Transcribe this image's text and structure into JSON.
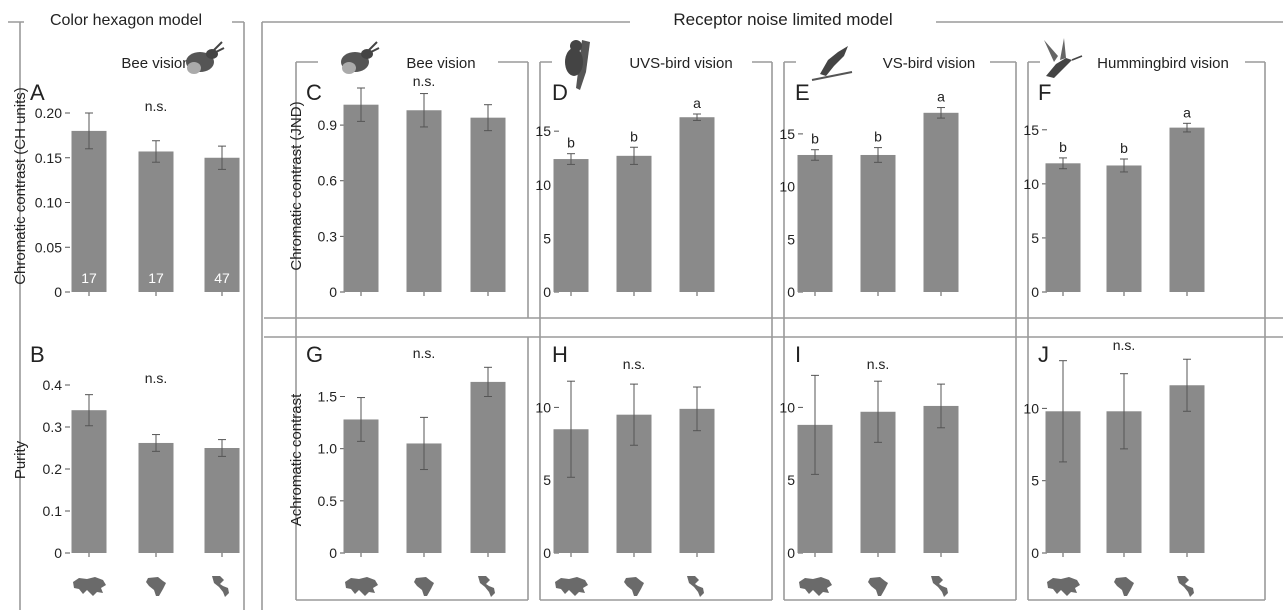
{
  "sections": {
    "left": "Color hexagon model",
    "right": "Receptor noise limited model"
  },
  "axis_titles": {
    "chromatic_ch": "Chromatic contrast (CH units)",
    "purity": "Purity",
    "chromatic_jnd": "Chromatic contrast (JND)",
    "achromatic": "Achromatic contrast"
  },
  "region_icons": [
    "eurasia-map-icon",
    "africa-map-icon",
    "americas-map-icon"
  ],
  "animal_icons": {
    "A": "bee-icon",
    "C": "bee-icon",
    "D": "uvs-bird-icon",
    "E": "vs-bird-icon",
    "F": "hummingbird-icon"
  },
  "colors": {
    "bar": "#8a8a8a",
    "frame": "#9a9a9a",
    "text": "#222222"
  },
  "chart_data": [
    {
      "panel": "A",
      "type": "bar",
      "title": "Bee vision",
      "ylabel": "Chromatic contrast (CH units)",
      "categories": [
        "Eurasia",
        "Africa",
        "Americas"
      ],
      "values": [
        0.18,
        0.157,
        0.15
      ],
      "errors": [
        0.02,
        0.012,
        0.013
      ],
      "ylim": [
        0,
        0.2
      ],
      "yticks": [
        "0",
        "0.05",
        "0.10",
        "0.15",
        "0.20"
      ],
      "tickvals": [
        0,
        0.05,
        0.1,
        0.15,
        0.2
      ],
      "annotation": "n.s.",
      "letters": [
        "",
        "",
        ""
      ],
      "sample_sizes": [
        "17",
        "17",
        "47"
      ]
    },
    {
      "panel": "B",
      "type": "bar",
      "title": "",
      "ylabel": "Purity",
      "categories": [
        "Eurasia",
        "Africa",
        "Americas"
      ],
      "values": [
        0.34,
        0.262,
        0.25
      ],
      "errors": [
        0.037,
        0.02,
        0.02
      ],
      "ylim": [
        0,
        0.4
      ],
      "yticks": [
        "0",
        "0.1",
        "0.2",
        "0.3",
        "0.4"
      ],
      "tickvals": [
        0,
        0.1,
        0.2,
        0.3,
        0.4
      ],
      "annotation": "n.s.",
      "letters": [
        "",
        "",
        ""
      ]
    },
    {
      "panel": "C",
      "type": "bar",
      "title": "Bee vision",
      "ylabel": "Chromatic contrast (JND)",
      "categories": [
        "Eurasia",
        "Africa",
        "Americas"
      ],
      "values": [
        1.01,
        0.98,
        0.94
      ],
      "errors": [
        0.09,
        0.09,
        0.07
      ],
      "ylim": [
        0,
        1.1
      ],
      "yticks": [
        "0",
        "0.3",
        "0.6",
        "0.9"
      ],
      "tickvals": [
        0,
        0.3,
        0.6,
        0.9
      ],
      "annotation": "n.s.",
      "letters": [
        "",
        "",
        ""
      ]
    },
    {
      "panel": "D",
      "type": "bar",
      "title": "UVS-bird vision",
      "ylabel": "",
      "categories": [
        "Eurasia",
        "Africa",
        "Americas"
      ],
      "values": [
        12.4,
        12.7,
        16.3
      ],
      "errors": [
        0.5,
        0.8,
        0.3
      ],
      "ylim": [
        0,
        18
      ],
      "yticks": [
        "0",
        "5",
        "10",
        "15"
      ],
      "tickvals": [
        0,
        5,
        10,
        15
      ],
      "annotation": "",
      "letters": [
        "b",
        "b",
        "a"
      ]
    },
    {
      "panel": "E",
      "type": "bar",
      "title": "VS-bird vision",
      "ylabel": "",
      "categories": [
        "Eurasia",
        "Africa",
        "Americas"
      ],
      "values": [
        13.0,
        13.0,
        17.0
      ],
      "errors": [
        0.5,
        0.7,
        0.5
      ],
      "ylim": [
        0,
        18.5
      ],
      "yticks": [
        "0",
        "5",
        "10",
        "15"
      ],
      "tickvals": [
        0,
        5,
        10,
        15
      ],
      "annotation": "",
      "letters": [
        "b",
        "b",
        "a"
      ]
    },
    {
      "panel": "F",
      "type": "bar",
      "title": "Hummingbird vision",
      "ylabel": "",
      "categories": [
        "Eurasia",
        "Africa",
        "Americas"
      ],
      "values": [
        11.9,
        11.7,
        15.2
      ],
      "errors": [
        0.5,
        0.6,
        0.4
      ],
      "ylim": [
        0,
        17.2
      ],
      "yticks": [
        "0",
        "5",
        "10",
        "15"
      ],
      "tickvals": [
        0,
        5,
        10,
        15
      ],
      "annotation": "",
      "letters": [
        "b",
        "b",
        "a"
      ]
    },
    {
      "panel": "G",
      "type": "bar",
      "title": "",
      "ylabel": "Achromatic contrast",
      "categories": [
        "Eurasia",
        "Africa",
        "Americas"
      ],
      "values": [
        1.28,
        1.05,
        1.64
      ],
      "errors": [
        0.21,
        0.25,
        0.14
      ],
      "ylim": [
        0,
        1.85
      ],
      "yticks": [
        "0",
        "0.5",
        "1.0",
        "1.5"
      ],
      "tickvals": [
        0,
        0.5,
        1.0,
        1.5
      ],
      "annotation": "n.s.",
      "letters": [
        "",
        "",
        ""
      ]
    },
    {
      "panel": "H",
      "type": "bar",
      "title": "",
      "ylabel": "",
      "categories": [
        "Eurasia",
        "Africa",
        "Americas"
      ],
      "values": [
        8.5,
        9.5,
        9.9
      ],
      "errors": [
        3.3,
        2.1,
        1.5
      ],
      "ylim": [
        0,
        12.5
      ],
      "yticks": [
        "0",
        "5",
        "10"
      ],
      "tickvals": [
        0,
        5,
        10
      ],
      "annotation": "n.s.",
      "letters": [
        "",
        "",
        ""
      ]
    },
    {
      "panel": "I",
      "type": "bar",
      "title": "",
      "ylabel": "",
      "categories": [
        "Eurasia",
        "Africa",
        "Americas"
      ],
      "values": [
        8.8,
        9.7,
        10.1
      ],
      "errors": [
        3.4,
        2.1,
        1.5
      ],
      "ylim": [
        0,
        12.5
      ],
      "yticks": [
        "0",
        "5",
        "10"
      ],
      "tickvals": [
        0,
        5,
        10
      ],
      "annotation": "n.s.",
      "letters": [
        "",
        "",
        ""
      ]
    },
    {
      "panel": "J",
      "type": "bar",
      "title": "",
      "ylabel": "",
      "categories": [
        "Eurasia",
        "Africa",
        "Americas"
      ],
      "values": [
        9.8,
        9.8,
        11.6
      ],
      "errors": [
        3.5,
        2.6,
        1.8
      ],
      "ylim": [
        0,
        13.9
      ],
      "yticks": [
        "0",
        "5",
        "10"
      ],
      "tickvals": [
        0,
        5,
        10
      ],
      "annotation": "n.s.",
      "letters": [
        "",
        "",
        ""
      ]
    }
  ]
}
